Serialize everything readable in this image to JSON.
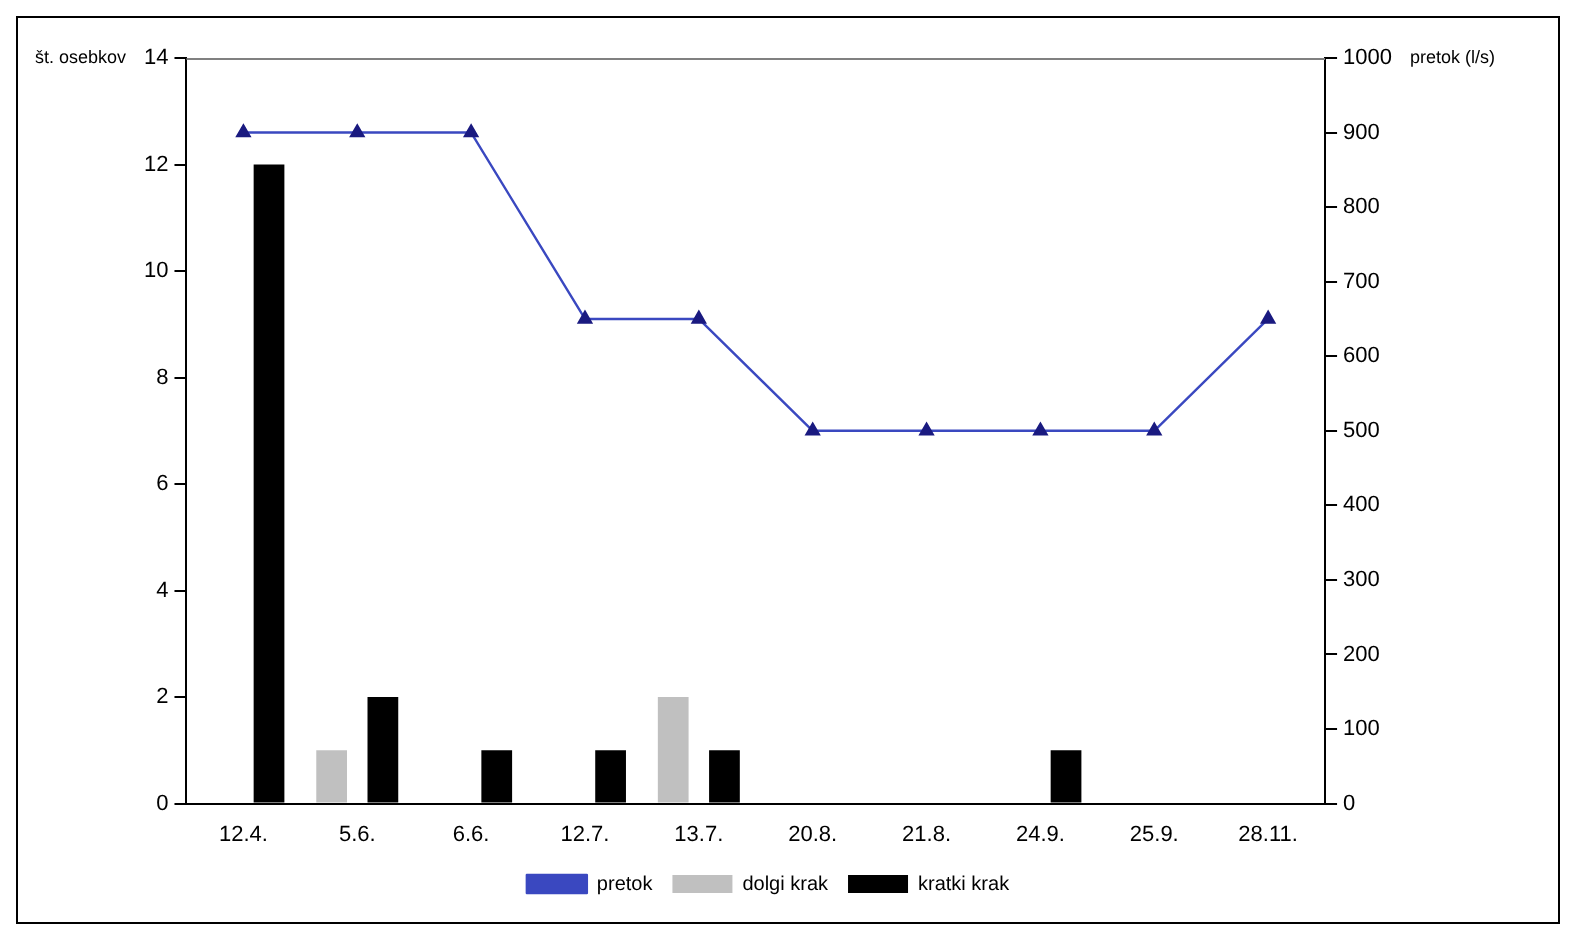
{
  "chart_data": {
    "type": "bar",
    "ylabel": "št. osebkov",
    "y2label": "pretok (l/s)",
    "categories": [
      "12.4.",
      "5.6.",
      "6.6.",
      "12.7.",
      "13.7.",
      "20.8.",
      "21.8.",
      "24.9.",
      "25.9.",
      "28.11."
    ],
    "series": [
      {
        "name": "dolgi krak",
        "color": "#c0c0c0",
        "values": [
          0,
          1,
          0,
          0,
          2,
          0,
          0,
          0,
          0,
          0
        ]
      },
      {
        "name": "kratki krak",
        "color": "#000000",
        "values": [
          12,
          2,
          1,
          1,
          1,
          0,
          0,
          1,
          0,
          0
        ]
      },
      {
        "name": "pretok",
        "type": "line",
        "axis": "y2",
        "color": "#3a48c0",
        "marker": "triangle",
        "values": [
          900,
          900,
          900,
          650,
          650,
          500,
          500,
          500,
          500,
          650
        ]
      }
    ],
    "ylim": [
      0,
      14
    ],
    "yticks": [
      0,
      2,
      4,
      6,
      8,
      10,
      12,
      14
    ],
    "y2lim": [
      0,
      1000
    ],
    "y2ticks": [
      0,
      100,
      200,
      300,
      400,
      500,
      600,
      700,
      800,
      900,
      1000
    ],
    "grid": false,
    "legend": "bottom"
  }
}
